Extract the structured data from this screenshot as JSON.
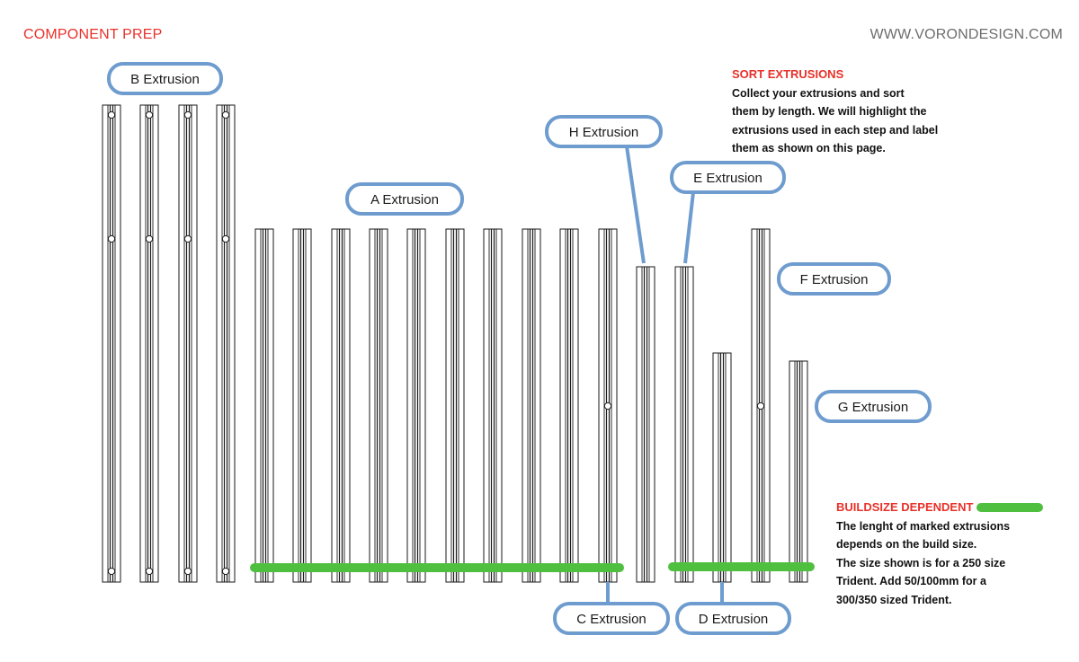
{
  "header": {
    "left_title": "COMPONENT PREP",
    "right_url": "WWW.VORONDESIGN.COM"
  },
  "colors": {
    "accent_red": "#e8312a",
    "label_outline_blue": "#6e9ccf",
    "buildsize_green": "#4fbf3f",
    "extrusion_stroke": "#1a1a1a"
  },
  "labels": {
    "a": "A Extrusion",
    "b": "B Extrusion",
    "c": "C Extrusion",
    "d": "D Extrusion",
    "e": "E Extrusion",
    "f": "F Extrusion",
    "g": "G Extrusion",
    "h": "H Extrusion"
  },
  "sort_note": {
    "title": "SORT EXTRUSIONS",
    "lines": [
      "Collect your extrusions and sort",
      "them by length. We will highlight the",
      "extrusions used in each step and label",
      "them as shown on this page."
    ]
  },
  "buildsize_note": {
    "title": "BUILDSIZE DEPENDENT",
    "lines": [
      "The lenght of marked extrusions",
      "depends on the build size.",
      "The size shown is for a 250 size",
      "Trident. Add 50/100mm for a",
      "300/350 sized Trident."
    ]
  }
}
